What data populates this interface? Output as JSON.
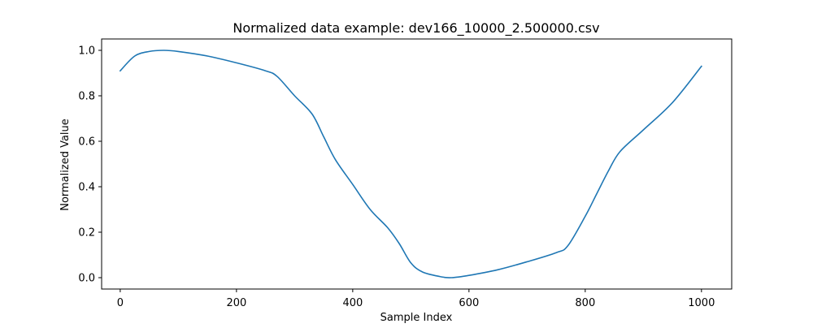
{
  "chart_data": {
    "type": "line",
    "title": "Normalized data example: dev166_10000_2.500000.csv",
    "xlabel": "Sample Index",
    "ylabel": "Normalized Value",
    "xlim": [
      -32,
      1052
    ],
    "ylim": [
      -0.05,
      1.05
    ],
    "xticks": [
      0,
      200,
      400,
      600,
      800,
      1000
    ],
    "yticks": [
      0.0,
      0.2,
      0.4,
      0.6,
      0.8,
      1.0
    ],
    "xtick_labels": [
      "0",
      "200",
      "400",
      "600",
      "800",
      "1000"
    ],
    "ytick_labels": [
      "0.0",
      "0.2",
      "0.4",
      "0.6",
      "0.8",
      "1.0"
    ],
    "grid": false,
    "series": [
      {
        "color": "#1f77b4",
        "x": [
          0,
          25,
          50,
          75,
          100,
          150,
          200,
          250,
          270,
          300,
          330,
          350,
          370,
          400,
          430,
          460,
          480,
          500,
          520,
          550,
          570,
          600,
          650,
          700,
          750,
          770,
          800,
          820,
          840,
          860,
          900,
          950,
          1000
        ],
        "y": [
          0.91,
          0.975,
          0.995,
          1.0,
          0.995,
          0.975,
          0.945,
          0.91,
          0.885,
          0.8,
          0.72,
          0.62,
          0.52,
          0.41,
          0.3,
          0.22,
          0.15,
          0.065,
          0.025,
          0.005,
          0.0,
          0.01,
          0.035,
          0.07,
          0.11,
          0.14,
          0.27,
          0.37,
          0.47,
          0.555,
          0.65,
          0.77,
          0.93
        ]
      }
    ]
  }
}
